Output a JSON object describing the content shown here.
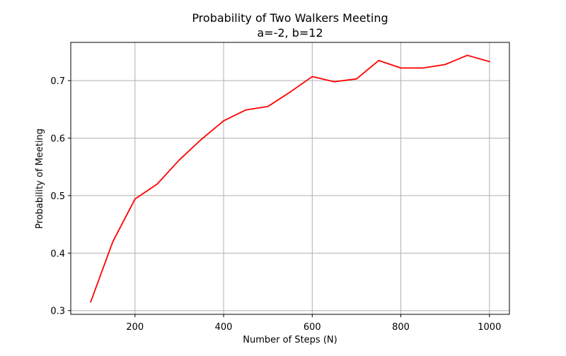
{
  "chart_data": {
    "type": "line",
    "title": "Probability of Two Walkers Meeting",
    "subtitle": "a=-2, b=12",
    "xlabel": "Number of Steps (N)",
    "ylabel": "Probability of Meeting",
    "xlim": [
      55,
      1045
    ],
    "ylim": [
      0.2935,
      0.7665
    ],
    "xticks": [
      200,
      400,
      600,
      800,
      1000
    ],
    "yticks": [
      0.3,
      0.4,
      0.5,
      0.6,
      0.7
    ],
    "xtick_labels": [
      "200",
      "400",
      "600",
      "800",
      "1000"
    ],
    "ytick_labels": [
      "0.3",
      "0.4",
      "0.5",
      "0.6",
      "0.7"
    ],
    "grid": true,
    "series": [
      {
        "color": "#ff0000",
        "x": [
          100,
          150,
          200,
          250,
          300,
          350,
          400,
          450,
          500,
          550,
          600,
          650,
          700,
          750,
          800,
          850,
          900,
          950,
          1000
        ],
        "y": [
          0.315,
          0.42,
          0.494,
          0.52,
          0.562,
          0.598,
          0.63,
          0.649,
          0.655,
          0.68,
          0.707,
          0.698,
          0.703,
          0.735,
          0.722,
          0.722,
          0.728,
          0.744,
          0.733
        ]
      }
    ]
  }
}
